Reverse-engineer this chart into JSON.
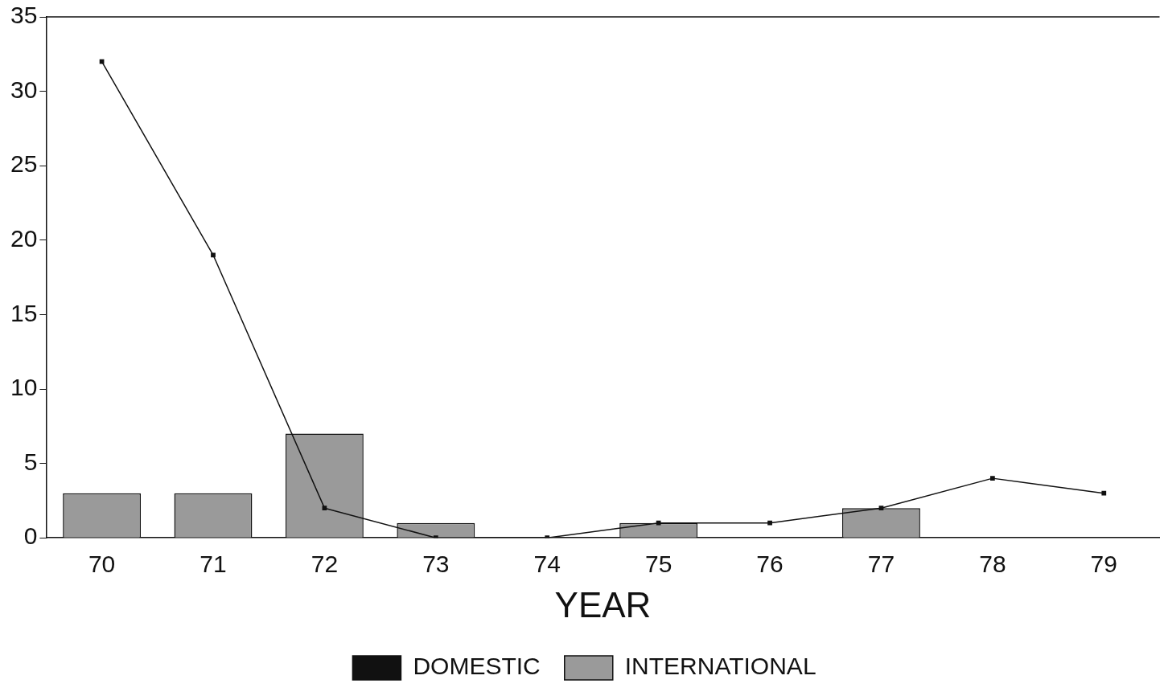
{
  "chart_data": {
    "type": "bar",
    "xlabel": "YEAR",
    "categories": [
      "70",
      "71",
      "72",
      "73",
      "74",
      "75",
      "76",
      "77",
      "78",
      "79"
    ],
    "series": [
      {
        "name": "DOMESTIC",
        "type": "line",
        "color": "#111111",
        "values": [
          32,
          19,
          2,
          0,
          0,
          1,
          1,
          2,
          4,
          3
        ]
      },
      {
        "name": "INTERNATIONAL",
        "color": "#9a9a9a",
        "values": [
          3,
          3,
          7,
          1,
          null,
          1,
          null,
          2,
          null,
          null
        ]
      }
    ],
    "ylim": [
      0,
      35
    ],
    "yticks": [
      0,
      5,
      10,
      15,
      20,
      25,
      30,
      35
    ],
    "grid": false,
    "legend": "bottom",
    "marker": "square",
    "line_style": "solid"
  }
}
